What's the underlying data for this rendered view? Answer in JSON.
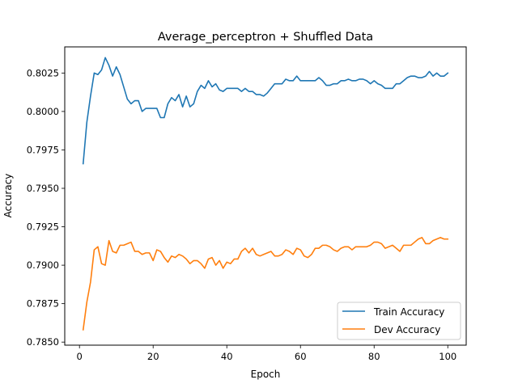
{
  "chart_data": {
    "type": "line",
    "title": "Average_perceptron + Shuffled Data",
    "xlabel": "Epoch",
    "ylabel": "Accuracy",
    "xlim": [
      -4,
      105
    ],
    "ylim": [
      0.7848,
      0.8042
    ],
    "xticks": [
      0,
      20,
      40,
      60,
      80,
      100
    ],
    "yticks": [
      0.785,
      0.7875,
      0.79,
      0.7925,
      0.795,
      0.7975,
      0.8,
      0.8025
    ],
    "ytick_labels": [
      "0.7850",
      "0.7875",
      "0.7900",
      "0.7925",
      "0.7950",
      "0.7975",
      "0.8000",
      "0.8025"
    ],
    "grid": false,
    "legend_position": "lower-right",
    "series": [
      {
        "name": "Train Accuracy",
        "color": "#1f77b4",
        "x": [
          1,
          2,
          3,
          4,
          5,
          6,
          7,
          8,
          9,
          10,
          11,
          12,
          13,
          14,
          15,
          16,
          17,
          18,
          19,
          20,
          21,
          22,
          23,
          24,
          25,
          26,
          27,
          28,
          29,
          30,
          31,
          32,
          33,
          34,
          35,
          36,
          37,
          38,
          39,
          40,
          41,
          42,
          43,
          44,
          45,
          46,
          47,
          48,
          49,
          50,
          51,
          52,
          53,
          54,
          55,
          56,
          57,
          58,
          59,
          60,
          61,
          62,
          63,
          64,
          65,
          66,
          67,
          68,
          69,
          70,
          71,
          72,
          73,
          74,
          75,
          76,
          77,
          78,
          79,
          80,
          81,
          82,
          83,
          84,
          85,
          86,
          87,
          88,
          89,
          90,
          91,
          92,
          93,
          94,
          95,
          96,
          97,
          98,
          99,
          100
        ],
        "values": [
          0.7966,
          0.7993,
          0.801,
          0.8025,
          0.8024,
          0.8027,
          0.8035,
          0.803,
          0.8023,
          0.8029,
          0.8024,
          0.8016,
          0.8008,
          0.8005,
          0.8007,
          0.8007,
          0.8,
          0.8002,
          0.8002,
          0.8002,
          0.8002,
          0.7996,
          0.7996,
          0.8005,
          0.8009,
          0.8007,
          0.8011,
          0.8003,
          0.801,
          0.8003,
          0.8005,
          0.8013,
          0.8017,
          0.8015,
          0.802,
          0.8016,
          0.8018,
          0.8014,
          0.8013,
          0.8015,
          0.8015,
          0.8015,
          0.8015,
          0.8013,
          0.8015,
          0.8013,
          0.8013,
          0.8011,
          0.8011,
          0.801,
          0.8012,
          0.8015,
          0.8018,
          0.8018,
          0.8018,
          0.8021,
          0.802,
          0.802,
          0.8023,
          0.802,
          0.802,
          0.802,
          0.802,
          0.802,
          0.8022,
          0.802,
          0.8017,
          0.8017,
          0.8018,
          0.8018,
          0.802,
          0.802,
          0.8021,
          0.802,
          0.802,
          0.8021,
          0.8021,
          0.802,
          0.8018,
          0.802,
          0.8018,
          0.8017,
          0.8015,
          0.8015,
          0.8015,
          0.8018,
          0.8018,
          0.802,
          0.8022,
          0.8023,
          0.8023,
          0.8022,
          0.8022,
          0.8023,
          0.8026,
          0.8023,
          0.8025,
          0.8023,
          0.8023,
          0.8025
        ]
      },
      {
        "name": "Dev Accuracy",
        "color": "#ff7f0e",
        "x": [
          1,
          2,
          3,
          4,
          5,
          6,
          7,
          8,
          9,
          10,
          11,
          12,
          13,
          14,
          15,
          16,
          17,
          18,
          19,
          20,
          21,
          22,
          23,
          24,
          25,
          26,
          27,
          28,
          29,
          30,
          31,
          32,
          33,
          34,
          35,
          36,
          37,
          38,
          39,
          40,
          41,
          42,
          43,
          44,
          45,
          46,
          47,
          48,
          49,
          50,
          51,
          52,
          53,
          54,
          55,
          56,
          57,
          58,
          59,
          60,
          61,
          62,
          63,
          64,
          65,
          66,
          67,
          68,
          69,
          70,
          71,
          72,
          73,
          74,
          75,
          76,
          77,
          78,
          79,
          80,
          81,
          82,
          83,
          84,
          85,
          86,
          87,
          88,
          89,
          90,
          91,
          92,
          93,
          94,
          95,
          96,
          97,
          98,
          99,
          100
        ],
        "values": [
          0.7858,
          0.7876,
          0.7889,
          0.791,
          0.7912,
          0.7901,
          0.79,
          0.7916,
          0.7909,
          0.7908,
          0.7913,
          0.7913,
          0.7914,
          0.7915,
          0.7909,
          0.7909,
          0.7907,
          0.7908,
          0.7908,
          0.7903,
          0.791,
          0.7909,
          0.7905,
          0.7902,
          0.7906,
          0.7905,
          0.7907,
          0.7906,
          0.7904,
          0.7901,
          0.7903,
          0.7903,
          0.7901,
          0.7898,
          0.7904,
          0.7905,
          0.79,
          0.7903,
          0.7898,
          0.7902,
          0.7901,
          0.7904,
          0.7904,
          0.7909,
          0.7911,
          0.7908,
          0.7911,
          0.7907,
          0.7906,
          0.7907,
          0.7908,
          0.7909,
          0.7906,
          0.7906,
          0.7907,
          0.791,
          0.7909,
          0.7907,
          0.7911,
          0.791,
          0.7906,
          0.7905,
          0.7907,
          0.7911,
          0.7911,
          0.7913,
          0.7913,
          0.7912,
          0.791,
          0.7909,
          0.7911,
          0.7912,
          0.7912,
          0.791,
          0.7912,
          0.7912,
          0.7912,
          0.7912,
          0.7913,
          0.7915,
          0.7915,
          0.7914,
          0.7911,
          0.7912,
          0.7913,
          0.7911,
          0.7909,
          0.7913,
          0.7913,
          0.7913,
          0.7915,
          0.7917,
          0.7918,
          0.7914,
          0.7914,
          0.7916,
          0.7917,
          0.7918,
          0.7917,
          0.7917
        ]
      }
    ]
  }
}
